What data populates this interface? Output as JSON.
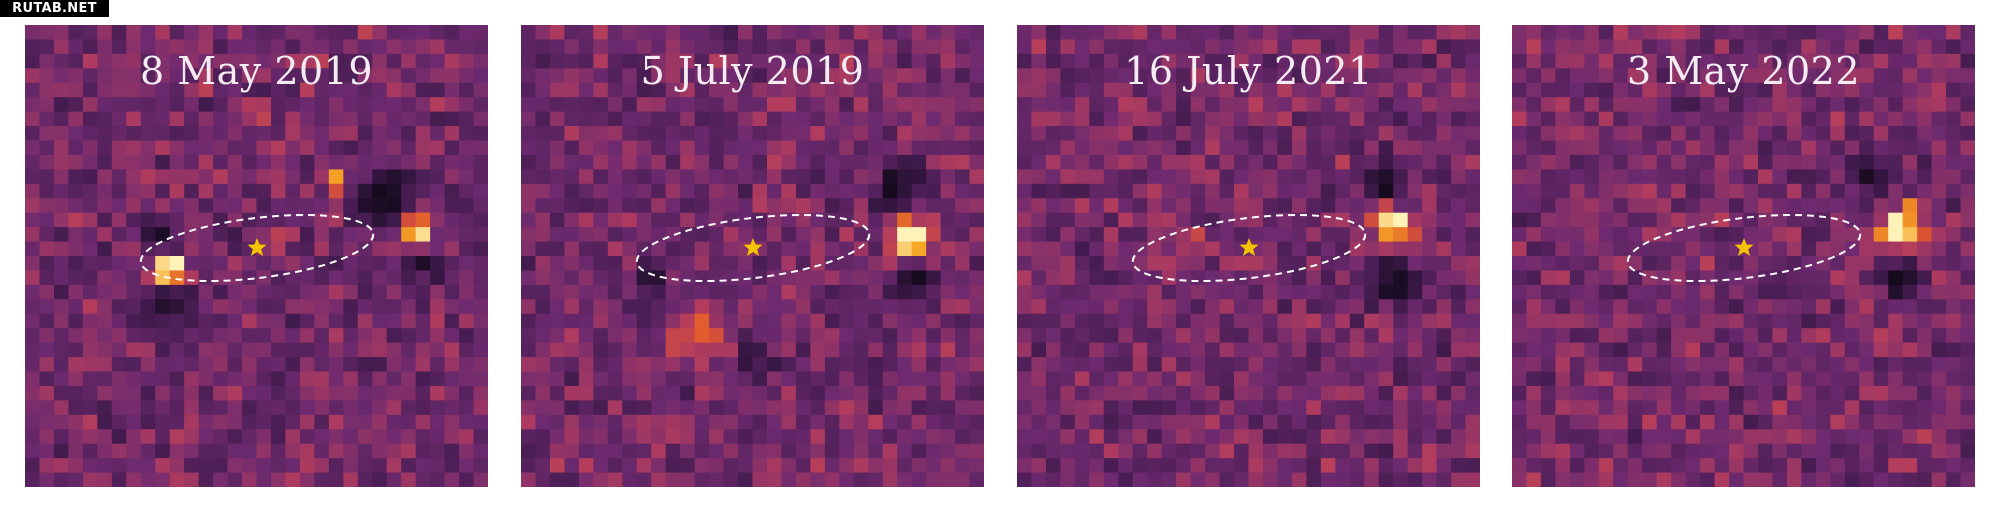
{
  "watermark": "RUTAB.NET",
  "colors": {
    "background": "#6e2a6f",
    "bright_core": "#fff2b8",
    "bright_mid": "#f5a623",
    "bright_outer": "#e0552e",
    "dark": "#160a1e",
    "star": "#f5c400",
    "ellipse": "#ffffff"
  },
  "panels": [
    {
      "date": "8 May 2019"
    },
    {
      "date": "5 July 2019"
    },
    {
      "date": "16 July 2021"
    },
    {
      "date": "3 May 2022"
    }
  ]
}
